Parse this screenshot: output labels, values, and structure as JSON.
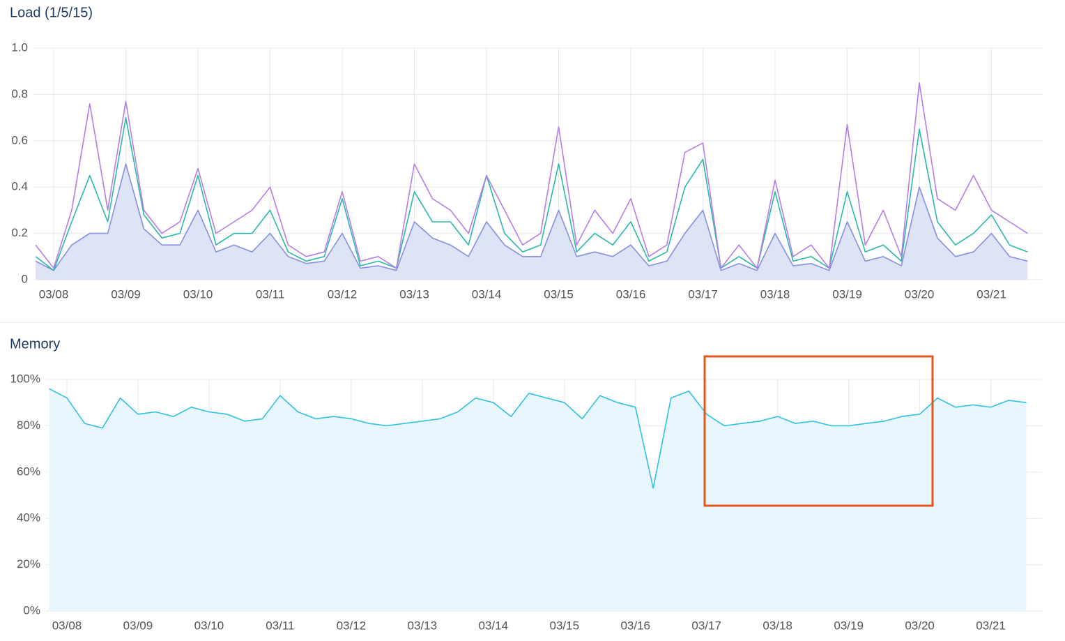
{
  "chart_data": [
    {
      "type": "line",
      "title": "Load (1/5/15)",
      "x": [
        7.75,
        8,
        8.25,
        8.5,
        8.75,
        9,
        9.25,
        9.5,
        9.75,
        10,
        10.25,
        10.5,
        10.75,
        11,
        11.25,
        11.5,
        11.75,
        12,
        12.25,
        12.5,
        12.75,
        13,
        13.25,
        13.5,
        13.75,
        14,
        14.25,
        14.5,
        14.75,
        15,
        15.25,
        15.5,
        15.75,
        16,
        16.25,
        16.5,
        16.75,
        17,
        17.25,
        17.5,
        17.75,
        18,
        18.25,
        18.5,
        18.75,
        19,
        19.25,
        19.5,
        19.75,
        20,
        20.25,
        20.5,
        20.75,
        21,
        21.25,
        21.5
      ],
      "xlim": [
        7.71,
        21.7
      ],
      "xticks": [
        {
          "value": 8,
          "label": "03/08"
        },
        {
          "value": 9,
          "label": "03/09"
        },
        {
          "value": 10,
          "label": "03/10"
        },
        {
          "value": 11,
          "label": "03/11"
        },
        {
          "value": 12,
          "label": "03/12"
        },
        {
          "value": 13,
          "label": "03/13"
        },
        {
          "value": 14,
          "label": "03/14"
        },
        {
          "value": 15,
          "label": "03/15"
        },
        {
          "value": 16,
          "label": "03/16"
        },
        {
          "value": 17,
          "label": "03/17"
        },
        {
          "value": 18,
          "label": "03/18"
        },
        {
          "value": 19,
          "label": "03/19"
        },
        {
          "value": 20,
          "label": "03/20"
        },
        {
          "value": 21,
          "label": "03/21"
        }
      ],
      "ylim": [
        0,
        1
      ],
      "yticks": [
        0,
        0.2,
        0.4,
        0.6,
        0.8,
        {
          "value": 1,
          "label": "1.0"
        }
      ],
      "grid": true,
      "series": [
        {
          "color": "#b57ee6",
          "values": [
            0.15,
            0.05,
            0.3,
            0.76,
            0.3,
            0.77,
            0.3,
            0.2,
            0.25,
            0.48,
            0.2,
            0.25,
            0.3,
            0.4,
            0.15,
            0.1,
            0.12,
            0.38,
            0.08,
            0.1,
            0.05,
            0.5,
            0.35,
            0.3,
            0.2,
            0.45,
            0.3,
            0.15,
            0.2,
            0.66,
            0.15,
            0.3,
            0.2,
            0.35,
            0.1,
            0.15,
            0.55,
            0.59,
            0.05,
            0.15,
            0.05,
            0.43,
            0.1,
            0.15,
            0.05,
            0.67,
            0.15,
            0.3,
            0.1,
            0.85,
            0.35,
            0.3,
            0.45,
            0.3,
            0.25,
            0.2
          ]
        },
        {
          "color": "#2ab7a9",
          "values": [
            0.1,
            0.04,
            0.25,
            0.45,
            0.25,
            0.7,
            0.28,
            0.18,
            0.2,
            0.45,
            0.15,
            0.2,
            0.2,
            0.3,
            0.12,
            0.08,
            0.1,
            0.35,
            0.06,
            0.08,
            0.05,
            0.38,
            0.25,
            0.25,
            0.15,
            0.45,
            0.2,
            0.12,
            0.15,
            0.5,
            0.12,
            0.2,
            0.15,
            0.25,
            0.08,
            0.12,
            0.4,
            0.52,
            0.05,
            0.1,
            0.05,
            0.38,
            0.08,
            0.1,
            0.05,
            0.38,
            0.12,
            0.15,
            0.08,
            0.65,
            0.25,
            0.15,
            0.2,
            0.28,
            0.15,
            0.12
          ]
        },
        {
          "color": "#8490e0",
          "fill": "#dfe3f6",
          "values": [
            0.08,
            0.04,
            0.15,
            0.2,
            0.2,
            0.5,
            0.22,
            0.15,
            0.15,
            0.3,
            0.12,
            0.15,
            0.12,
            0.2,
            0.1,
            0.07,
            0.08,
            0.2,
            0.05,
            0.06,
            0.04,
            0.25,
            0.18,
            0.15,
            0.1,
            0.25,
            0.15,
            0.1,
            0.1,
            0.3,
            0.1,
            0.12,
            0.1,
            0.15,
            0.06,
            0.08,
            0.2,
            0.3,
            0.04,
            0.07,
            0.04,
            0.2,
            0.06,
            0.07,
            0.04,
            0.25,
            0.08,
            0.1,
            0.06,
            0.4,
            0.18,
            0.1,
            0.12,
            0.2,
            0.1,
            0.08
          ]
        }
      ]
    },
    {
      "type": "area",
      "title": "Memory",
      "x": [
        7.75,
        8,
        8.25,
        8.5,
        8.75,
        9,
        9.25,
        9.5,
        9.75,
        10,
        10.25,
        10.5,
        10.75,
        11,
        11.25,
        11.5,
        11.75,
        12,
        12.25,
        12.5,
        12.75,
        13,
        13.25,
        13.5,
        13.75,
        14,
        14.25,
        14.5,
        14.75,
        15,
        15.25,
        15.5,
        15.75,
        16,
        16.25,
        16.5,
        16.75,
        17,
        17.25,
        17.5,
        17.75,
        18,
        18.25,
        18.5,
        18.75,
        19,
        19.25,
        19.5,
        19.75,
        20,
        20.25,
        20.5,
        20.75,
        21,
        21.25,
        21.5
      ],
      "xlim": [
        7.706,
        21.72
      ],
      "xticks": [
        {
          "value": 8,
          "label": "03/08"
        },
        {
          "value": 9,
          "label": "03/09"
        },
        {
          "value": 10,
          "label": "03/10"
        },
        {
          "value": 11,
          "label": "03/11"
        },
        {
          "value": 12,
          "label": "03/12"
        },
        {
          "value": 13,
          "label": "03/13"
        },
        {
          "value": 14,
          "label": "03/14"
        },
        {
          "value": 15,
          "label": "03/15"
        },
        {
          "value": 16,
          "label": "03/16"
        },
        {
          "value": 17,
          "label": "03/17"
        },
        {
          "value": 18,
          "label": "03/18"
        },
        {
          "value": 19,
          "label": "03/19"
        },
        {
          "value": 20,
          "label": "03/20"
        },
        {
          "value": 21,
          "label": "03/21"
        }
      ],
      "ylim": [
        0,
        100
      ],
      "yticks": [
        {
          "value": 0,
          "label": "0%"
        },
        {
          "value": 20,
          "label": "20%"
        },
        {
          "value": 40,
          "label": "40%"
        },
        {
          "value": 60,
          "label": "60%"
        },
        {
          "value": 80,
          "label": "80%"
        },
        {
          "value": 100,
          "label": "100%"
        }
      ],
      "grid": true,
      "series": [
        {
          "color": "#2fc0e2",
          "fill": "#e8f7fd",
          "values": [
            96,
            92,
            81,
            79,
            92,
            85,
            86,
            84,
            88,
            86,
            85,
            82,
            83,
            93,
            86,
            83,
            84,
            83,
            81,
            80,
            81,
            82,
            83,
            86,
            92,
            90,
            84,
            94,
            92,
            90,
            83,
            93,
            90,
            88,
            53,
            92,
            95,
            85,
            80,
            81,
            82,
            84,
            81,
            82,
            80,
            80,
            81,
            82,
            84,
            85,
            92,
            88,
            89,
            88,
            91,
            90
          ]
        }
      ]
    }
  ]
}
